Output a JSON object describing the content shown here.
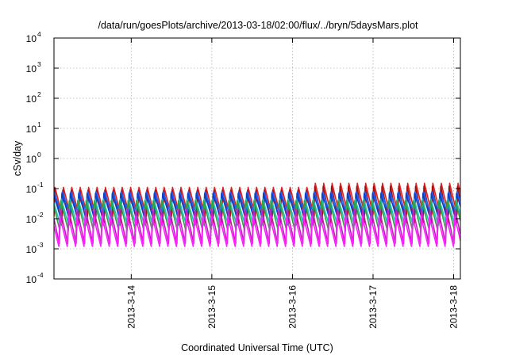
{
  "chart_data": {
    "type": "line",
    "title": "/data/run/goesPlots/archive/2013-03-18/02:00/flux/../bryn/5daysMars.plot",
    "xlabel": "Coordinated Universal Time (UTC)",
    "ylabel": "cSv/day",
    "y_scale": "log",
    "ylim": [
      0.0001,
      10000
    ],
    "xlim": [
      "2013-03-13T01:00",
      "2013-03-18T02:00"
    ],
    "x_ticks": [
      "2013-3-14",
      "2013-3-15",
      "2013-3-16",
      "2013-3-17",
      "2013-3-18"
    ],
    "y_ticks": [
      {
        "base": "10",
        "exp": "-4"
      },
      {
        "base": "10",
        "exp": "-3"
      },
      {
        "base": "10",
        "exp": "-2"
      },
      {
        "base": "10",
        "exp": "-1"
      },
      {
        "base": "10",
        "exp": "0"
      },
      {
        "base": "10",
        "exp": "1"
      },
      {
        "base": "10",
        "exp": "2"
      },
      {
        "base": "10",
        "exp": "3"
      },
      {
        "base": "10",
        "exp": "4"
      }
    ],
    "grid": true,
    "legend": "none",
    "pattern": {
      "period_hours": 2.5,
      "start": "2013-03-13T01:00",
      "end": "2013-03-18T02:00",
      "regime_change": "2013-03-16T06:00"
    },
    "series": [
      {
        "color": "#e02020",
        "peak": [
          0.11,
          0.15
        ],
        "trough": [
          0.012,
          0.014
        ],
        "phase_hours": 0.0
      },
      {
        "color": "#a01010",
        "peak": [
          0.09,
          0.12
        ],
        "trough": [
          0.006,
          0.007
        ],
        "phase_hours": 0.15
      },
      {
        "color": "#2060ff",
        "peak": [
          0.08,
          0.08
        ],
        "trough": [
          0.015,
          0.015
        ],
        "phase_hours": 0.3
      },
      {
        "color": "#1040c0",
        "peak": [
          0.07,
          0.07
        ],
        "trough": [
          0.01,
          0.01
        ],
        "phase_hours": 0.45
      },
      {
        "color": "#20c0c0",
        "peak": [
          0.045,
          0.045
        ],
        "trough": [
          0.006,
          0.006
        ],
        "phase_hours": 0.6
      },
      {
        "color": "#30a040",
        "peak": [
          0.04,
          0.04
        ],
        "trough": [
          0.004,
          0.004
        ],
        "phase_hours": 0.75
      },
      {
        "color": "#c020c0",
        "peak": [
          0.02,
          0.02
        ],
        "trough": [
          0.0015,
          0.0015
        ],
        "phase_hours": 0.9
      },
      {
        "color": "#ff20ff",
        "peak": [
          0.012,
          0.012
        ],
        "trough": [
          0.0012,
          0.0012
        ],
        "phase_hours": 1.05
      }
    ]
  }
}
